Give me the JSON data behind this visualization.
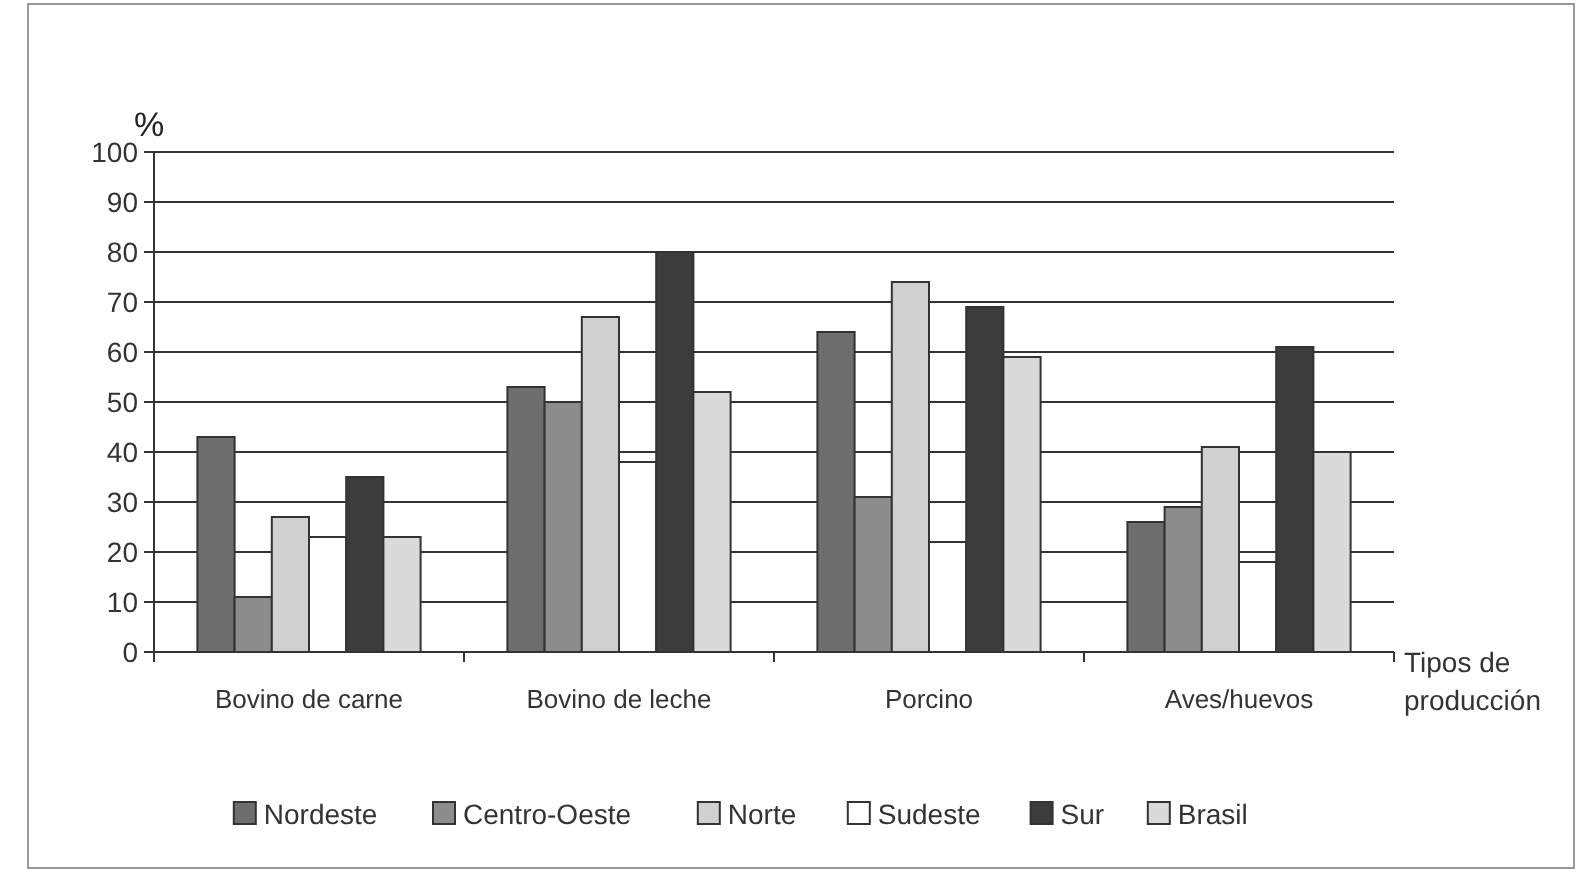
{
  "chart_data": {
    "type": "bar",
    "ylabel": "%",
    "xlabel": "Tipos de producción",
    "categories": [
      "Bovino de carne",
      "Bovino de leche",
      "Porcino",
      "Aves/huevos"
    ],
    "series": [
      {
        "name": "Nordeste",
        "color": "#6e6e6e",
        "values": [
          43,
          53,
          64,
          26
        ]
      },
      {
        "name": "Centro-Oeste",
        "color": "#8c8c8c",
        "values": [
          11,
          50,
          31,
          29
        ]
      },
      {
        "name": "Norte",
        "color": "#d0d0d0",
        "values": [
          27,
          67,
          74,
          41
        ]
      },
      {
        "name": "Sudeste",
        "color": "#ffffff",
        "values": [
          23,
          38,
          22,
          18
        ]
      },
      {
        "name": "Sur",
        "color": "#3c3c3c",
        "values": [
          35,
          80,
          69,
          61
        ]
      },
      {
        "name": "Brasil",
        "color": "#dadada",
        "values": [
          23,
          52,
          59,
          40
        ]
      }
    ],
    "ylim": [
      0,
      100
    ],
    "yticks": [
      0,
      10,
      20,
      30,
      40,
      50,
      60,
      70,
      80,
      90,
      100
    ],
    "grid": "y",
    "legend": "bottom"
  }
}
